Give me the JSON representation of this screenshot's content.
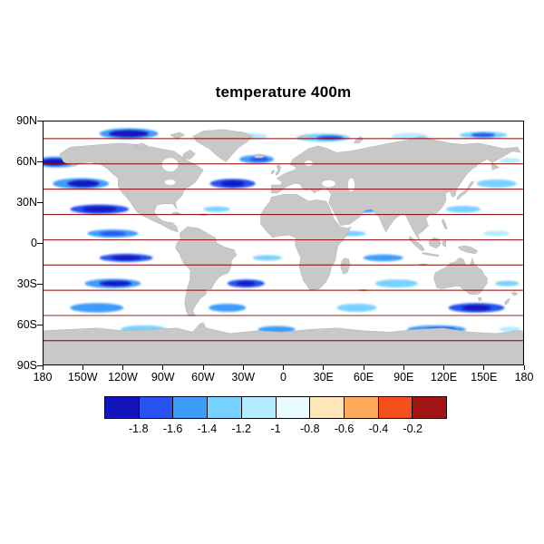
{
  "title": "temperature 400m",
  "colors": {
    "land": "#c8c8c8",
    "land_edge": "#a6a6a6",
    "ocean": "#ffffff",
    "gridline": "#8b0000",
    "frame": "#000000"
  },
  "chart_data": {
    "type": "heatmap",
    "title": "temperature 400m",
    "projection": "equirectangular world map",
    "xlim": [
      -180,
      180
    ],
    "ylim": [
      -90,
      90
    ],
    "x_ticks": [
      "180",
      "150W",
      "120W",
      "90W",
      "60W",
      "30W",
      "0",
      "30E",
      "60E",
      "90E",
      "120E",
      "150E",
      "180"
    ],
    "y_ticks": [
      "90N",
      "60N",
      "30N",
      "0",
      "30S",
      "60S",
      "90S"
    ],
    "colorbar": {
      "levels": [
        -1.8,
        -1.6,
        -1.4,
        -1.2,
        -1,
        -0.8,
        -0.6,
        -0.4,
        -0.2
      ],
      "labels": [
        "-1.8",
        "-1.6",
        "-1.4",
        "-1.2",
        "-1",
        "-0.8",
        "-0.6",
        "-0.4",
        "-0.2"
      ],
      "colors": [
        "#1414be",
        "#2853f0",
        "#3c9cfa",
        "#78d2ff",
        "#b4ecff",
        "#e8fbff",
        "#ffe6b9",
        "#ffaa5a",
        "#f5501e",
        "#a01414"
      ]
    },
    "gridline_lats": [
      77.3,
      58.6,
      39.9,
      21.1,
      2.4,
      -16.3,
      -35.0,
      -53.7,
      -72.4
    ],
    "patch_fields": [
      "lon",
      "lat",
      "width_deg",
      "height_deg",
      "color_index"
    ],
    "anomaly_patches": [
      [
        -116,
        81,
        44,
        8,
        2
      ],
      [
        -116,
        81,
        30,
        5,
        0
      ],
      [
        -25,
        79,
        26,
        5,
        4
      ],
      [
        30,
        78,
        40,
        6,
        3
      ],
      [
        35,
        78,
        20,
        3,
        1
      ],
      [
        95,
        79,
        28,
        5,
        4
      ],
      [
        150,
        80,
        36,
        5,
        3
      ],
      [
        150,
        80,
        18,
        3,
        1
      ],
      [
        -170,
        60,
        34,
        8,
        2
      ],
      [
        -172,
        60,
        20,
        5,
        0
      ],
      [
        -20,
        62,
        26,
        6,
        2
      ],
      [
        -18,
        62,
        14,
        3,
        1
      ],
      [
        45,
        63,
        40,
        7,
        2
      ],
      [
        45,
        63,
        22,
        4,
        0
      ],
      [
        128,
        62,
        44,
        7,
        1
      ],
      [
        128,
        62,
        24,
        4,
        0
      ],
      [
        170,
        61,
        16,
        4,
        4
      ],
      [
        -70,
        58,
        10,
        3,
        4
      ],
      [
        140,
        57,
        12,
        3,
        4
      ],
      [
        -152,
        44,
        42,
        8,
        2
      ],
      [
        -150,
        44,
        24,
        5,
        0
      ],
      [
        -38,
        44,
        34,
        7,
        1
      ],
      [
        -38,
        44,
        18,
        4,
        0
      ],
      [
        20,
        44,
        18,
        4,
        4
      ],
      [
        85,
        44,
        36,
        6,
        2
      ],
      [
        85,
        44,
        18,
        3,
        1
      ],
      [
        160,
        44,
        30,
        6,
        3
      ],
      [
        -138,
        25,
        44,
        7,
        1
      ],
      [
        -138,
        25,
        26,
        4,
        0
      ],
      [
        -50,
        25,
        20,
        4,
        3
      ],
      [
        60,
        25,
        30,
        5,
        2
      ],
      [
        135,
        25,
        26,
        5,
        3
      ],
      [
        -128,
        7,
        38,
        6,
        2
      ],
      [
        -128,
        7,
        20,
        3,
        1
      ],
      [
        50,
        7,
        24,
        4,
        3
      ],
      [
        160,
        7,
        20,
        4,
        4
      ],
      [
        -118,
        -11,
        40,
        6,
        1
      ],
      [
        -118,
        -11,
        22,
        3,
        0
      ],
      [
        -12,
        -11,
        22,
        4,
        3
      ],
      [
        75,
        -11,
        30,
        5,
        2
      ],
      [
        -128,
        -30,
        42,
        7,
        2
      ],
      [
        -126,
        -30,
        24,
        4,
        0
      ],
      [
        -28,
        -30,
        28,
        6,
        1
      ],
      [
        -28,
        -30,
        14,
        3,
        0
      ],
      [
        85,
        -30,
        32,
        6,
        3
      ],
      [
        168,
        -30,
        18,
        4,
        3
      ],
      [
        -140,
        -48,
        40,
        7,
        2
      ],
      [
        -42,
        -48,
        28,
        6,
        2
      ],
      [
        55,
        -48,
        30,
        6,
        3
      ],
      [
        145,
        -48,
        42,
        7,
        1
      ],
      [
        145,
        -48,
        22,
        4,
        0
      ],
      [
        -105,
        -64,
        34,
        6,
        3
      ],
      [
        -5,
        -64,
        28,
        5,
        2
      ],
      [
        115,
        -64,
        44,
        6,
        2
      ],
      [
        118,
        -64,
        22,
        3,
        1
      ],
      [
        170,
        -64,
        16,
        4,
        4
      ],
      [
        -95,
        40,
        6,
        1.5,
        7
      ],
      [
        -60,
        21,
        7,
        1.5,
        7
      ],
      [
        35,
        2,
        7,
        1.5,
        7
      ],
      [
        105,
        -16,
        7,
        1.5,
        7
      ],
      [
        60,
        -35,
        7,
        1.5,
        7
      ],
      [
        -10,
        40,
        10,
        3,
        5
      ]
    ]
  }
}
